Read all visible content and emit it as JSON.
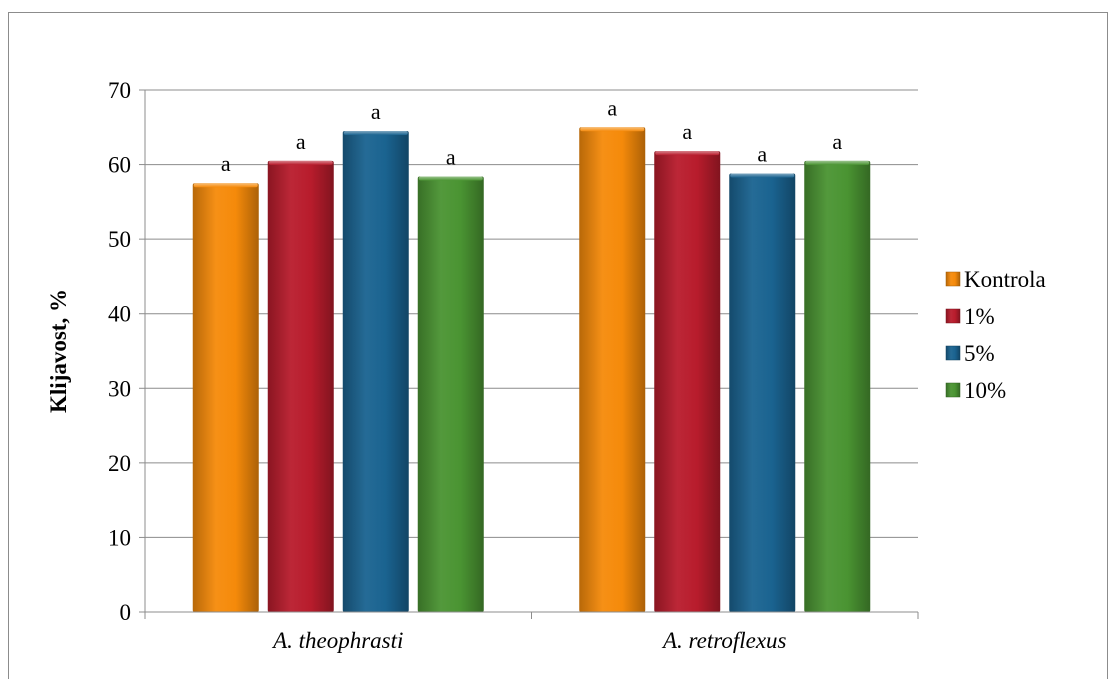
{
  "chart_data": {
    "type": "bar",
    "categories": [
      "A. theophrasti",
      "A. retroflexus"
    ],
    "series": [
      {
        "name": "Kontrola",
        "values": [
          57.5,
          65.0
        ],
        "letters": [
          "a",
          "a"
        ],
        "color": "#f58a0a"
      },
      {
        "name": "1%",
        "values": [
          60.5,
          61.8
        ],
        "letters": [
          "a",
          "a"
        ],
        "color": "#b81c2c"
      },
      {
        "name": "5%",
        "values": [
          64.5,
          58.8
        ],
        "letters": [
          "a",
          "a"
        ],
        "color": "#1a6390"
      },
      {
        "name": "10%",
        "values": [
          58.4,
          60.5
        ],
        "letters": [
          "a",
          "a"
        ],
        "color": "#4a9432"
      }
    ],
    "ylabel": "Klijavost, %",
    "ylim": [
      0,
      70
    ],
    "yticks": [
      0,
      10,
      20,
      30,
      40,
      50,
      60,
      70
    ],
    "grid": true,
    "legend_position": "right"
  }
}
